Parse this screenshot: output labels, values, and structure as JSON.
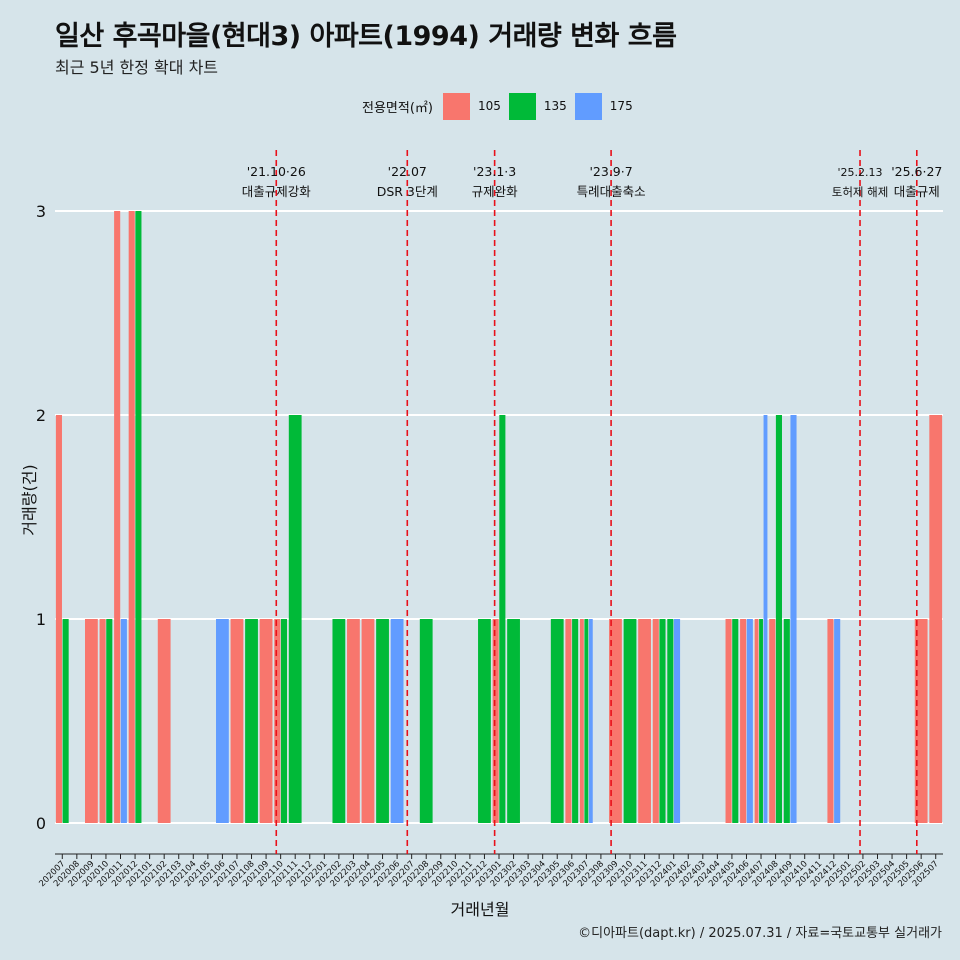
{
  "title": "일산 후곡마을(현대3) 아파트(1994) 거래량 변화 흐름",
  "subtitle": "최근 5년 한정 확대 차트",
  "caption": "©디아파트(dapt.kr) / 2025.07.31 / 자료=국토교통부 실거래가",
  "colors": {
    "105": "#f8766d",
    "135": "#00ba38",
    "175": "#619cff",
    "background": "#d6e4ea",
    "grid": "#ffffff",
    "annotation": "#e8101a"
  },
  "chart_data": {
    "type": "bar",
    "xlabel": "거래년월",
    "ylabel": "거래량(건)",
    "ylim": [
      0,
      3
    ],
    "yticks": [
      0,
      1,
      2,
      3
    ],
    "legend": {
      "title": "전용면적(㎡)",
      "placement": "top",
      "entries": [
        "105",
        "135",
        "175"
      ]
    },
    "categories": [
      "202007",
      "202008",
      "202009",
      "202010",
      "202011",
      "202012",
      "202101",
      "202102",
      "202103",
      "202104",
      "202105",
      "202106",
      "202107",
      "202108",
      "202109",
      "202110",
      "202111",
      "202112",
      "202201",
      "202202",
      "202203",
      "202204",
      "202205",
      "202206",
      "202207",
      "202208",
      "202209",
      "202210",
      "202211",
      "202212",
      "202301",
      "202302",
      "202303",
      "202304",
      "202305",
      "202306",
      "202307",
      "202308",
      "202309",
      "202310",
      "202311",
      "202312",
      "202401",
      "202402",
      "202403",
      "202404",
      "202405",
      "202406",
      "202407",
      "202408",
      "202409",
      "202410",
      "202411",
      "202412",
      "202501",
      "202502",
      "202503",
      "202504",
      "202505",
      "202506",
      "202507"
    ],
    "series": [
      {
        "name": "105",
        "values": {
          "202007": 2,
          "202009": 1,
          "202010": 1,
          "202011": 3,
          "202012": 3,
          "202102": 1,
          "202107": 1,
          "202109": 1,
          "202110": 1,
          "202203": 1,
          "202204": 1,
          "202301": 1,
          "202306": 1,
          "202307": 1,
          "202309": 1,
          "202311": 1,
          "202312": 1,
          "202405": 1,
          "202406": 1,
          "202407": 1,
          "202408": 1,
          "202412": 1,
          "202506": 1,
          "202507": 2
        }
      },
      {
        "name": "135",
        "values": {
          "202007": 1,
          "202010": 1,
          "202012": 3,
          "202108": 1,
          "202110": 1,
          "202111": 2,
          "202202": 1,
          "202205": 1,
          "202208": 1,
          "202212": 1,
          "202301": 2,
          "202302": 1,
          "202305": 1,
          "202306": 1,
          "202307": 1,
          "202310": 1,
          "202312": 1,
          "202401": 1,
          "202405": 1,
          "202407": 1,
          "202408": 2,
          "202409": 1
        }
      },
      {
        "name": "175",
        "values": {
          "202011": 1,
          "202106": 1,
          "202206": 1,
          "202307": 1,
          "202401": 1,
          "202406": 1,
          "202407": 2,
          "202409": 2,
          "202412": 1
        }
      }
    ],
    "annotations": [
      {
        "x": "202110",
        "date": "'21.10·26",
        "label": "대출규제강화"
      },
      {
        "x": "202207",
        "date": "'22.07",
        "label": "DSR 3단계"
      },
      {
        "x": "202301",
        "date": "'23.1·3",
        "label": "규제완화"
      },
      {
        "x": "202309",
        "date": "'23.9·7",
        "label": "특례대출축소"
      },
      {
        "x": "202502",
        "date": "'25.2.13",
        "label": "토허제 해제"
      },
      {
        "x": "202506",
        "date": "'25.6·27",
        "label": "대출규제"
      }
    ]
  }
}
